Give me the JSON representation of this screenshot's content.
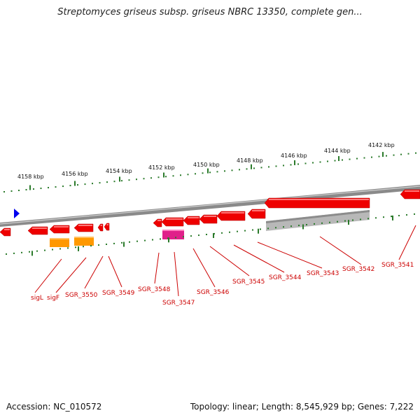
{
  "title": "Streptomyces griseus subsp. griseus NBRC 13350, complete gen...",
  "accession": "Accession: NC_010572",
  "summary": "Topology: linear; Length: 8,545,929 bp; Genes: 7,222",
  "ruler_labels": [
    "4158 kbp",
    "4156 kbp",
    "4154 kbp",
    "4152 kbp",
    "4150 kbp",
    "4148 kbp",
    "4146 kbp",
    "4144 kbp",
    "4142 kbp"
  ],
  "gene_labels": [
    "sigL",
    "sigF",
    "SGR_3550",
    "SGR_3549",
    "SGR_3548",
    "SGR_3547",
    "SGR_3546",
    "SGR_3545",
    "SGR_3544",
    "SGR_3543",
    "SGR_3542",
    "SGR_3541"
  ],
  "colors": {
    "gene": "#ee0000",
    "orange_feature": "#ff9900",
    "pink_feature": "#e0208a",
    "grey_feature": "#b8b8b8",
    "ticks": "#2a7a2a",
    "label": "#cc0000",
    "marker": "#0000ee"
  }
}
